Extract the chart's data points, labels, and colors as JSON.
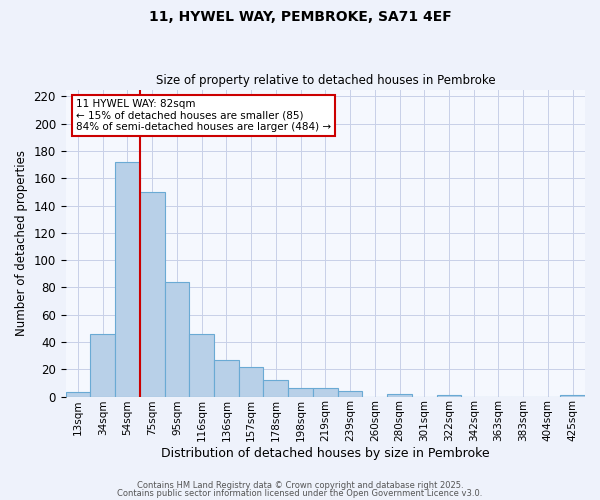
{
  "title": "11, HYWEL WAY, PEMBROKE, SA71 4EF",
  "subtitle": "Size of property relative to detached houses in Pembroke",
  "xlabel": "Distribution of detached houses by size in Pembroke",
  "ylabel": "Number of detached properties",
  "bar_labels": [
    "13sqm",
    "34sqm",
    "54sqm",
    "75sqm",
    "95sqm",
    "116sqm",
    "136sqm",
    "157sqm",
    "178sqm",
    "198sqm",
    "219sqm",
    "239sqm",
    "260sqm",
    "280sqm",
    "301sqm",
    "322sqm",
    "342sqm",
    "363sqm",
    "383sqm",
    "404sqm",
    "425sqm"
  ],
  "bar_values": [
    3,
    46,
    172,
    150,
    84,
    46,
    27,
    22,
    12,
    6,
    6,
    4,
    0,
    2,
    0,
    1,
    0,
    0,
    0,
    0,
    1
  ],
  "bar_color": "#b8d0e8",
  "bar_edge_color": "#6aaad4",
  "vline_x": 3,
  "vline_color": "#cc0000",
  "ylim": [
    0,
    225
  ],
  "yticks": [
    0,
    20,
    40,
    60,
    80,
    100,
    120,
    140,
    160,
    180,
    200,
    220
  ],
  "annotation_title": "11 HYWEL WAY: 82sqm",
  "annotation_line1": "← 15% of detached houses are smaller (85)",
  "annotation_line2": "84% of semi-detached houses are larger (484) →",
  "footer1": "Contains HM Land Registry data © Crown copyright and database right 2025.",
  "footer2": "Contains public sector information licensed under the Open Government Licence v3.0.",
  "bg_color": "#eef2fb",
  "plot_bg_color": "#f5f8fe",
  "grid_color": "#c8d0e8"
}
